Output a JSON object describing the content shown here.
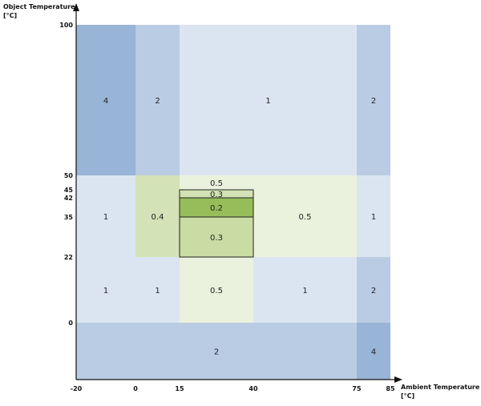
{
  "chart_data": {
    "type": "heatmap",
    "xlabel": "Ambient Temperature",
    "xunit": "[°C]",
    "ylabel": "Object Temperature",
    "yunit": "[°C]",
    "x_ticks": [
      "-20",
      "0",
      "15",
      "40",
      "75",
      "85"
    ],
    "y_ticks": [
      "0",
      "22",
      "35",
      "42",
      "45",
      "50",
      "100"
    ],
    "cells": [
      {
        "x": [
          -20,
          0
        ],
        "y": [
          50,
          100
        ],
        "value": "4",
        "color": "#98b4d6"
      },
      {
        "x": [
          0,
          15
        ],
        "y": [
          50,
          100
        ],
        "value": "2",
        "color": "#b9cce3"
      },
      {
        "x": [
          15,
          75
        ],
        "y": [
          50,
          100
        ],
        "value": "1",
        "color": "#dbe5f1"
      },
      {
        "x": [
          75,
          85
        ],
        "y": [
          50,
          100
        ],
        "value": "2",
        "color": "#b9cce3"
      },
      {
        "x": [
          -20,
          0
        ],
        "y": [
          22,
          50
        ],
        "value": "1",
        "color": "#dbe5f1"
      },
      {
        "x": [
          0,
          15
        ],
        "y": [
          22,
          50
        ],
        "value": "0.4",
        "color": "#d4e2b7"
      },
      {
        "x": [
          15,
          40
        ],
        "y": [
          45,
          50
        ],
        "value": "0.5",
        "color": "#eaf1dc"
      },
      {
        "x": [
          15,
          40
        ],
        "y": [
          42,
          45
        ],
        "value": "0.3",
        "color": "#d2e2b4"
      },
      {
        "x": [
          15,
          40
        ],
        "y": [
          35,
          42
        ],
        "value": "0.2",
        "color": "#97bd5a"
      },
      {
        "x": [
          15,
          40
        ],
        "y": [
          22,
          35
        ],
        "value": "0.3",
        "color": "#c8dca3"
      },
      {
        "x": [
          40,
          75
        ],
        "y": [
          22,
          50
        ],
        "value": "0.5",
        "color": "#eaf1dc"
      },
      {
        "x": [
          75,
          85
        ],
        "y": [
          22,
          50
        ],
        "value": "1",
        "color": "#dbe5f1"
      },
      {
        "x": [
          -20,
          0
        ],
        "y": [
          0,
          22
        ],
        "value": "1",
        "color": "#dbe5f1"
      },
      {
        "x": [
          0,
          15
        ],
        "y": [
          0,
          22
        ],
        "value": "1",
        "color": "#dbe5f1"
      },
      {
        "x": [
          15,
          40
        ],
        "y": [
          0,
          22
        ],
        "value": "0.5",
        "color": "#eaf1dc"
      },
      {
        "x": [
          40,
          75
        ],
        "y": [
          0,
          22
        ],
        "value": "1",
        "color": "#dbe5f1"
      },
      {
        "x": [
          75,
          85
        ],
        "y": [
          0,
          22
        ],
        "value": "2",
        "color": "#b9cce3"
      },
      {
        "x": [
          -20,
          75
        ],
        "y": [
          -10,
          0
        ],
        "value": "2",
        "color": "#b9cce3"
      },
      {
        "x": [
          75,
          85
        ],
        "y": [
          -10,
          0
        ],
        "value": "4",
        "color": "#98b4d6"
      }
    ],
    "outlined_region": {
      "x": [
        15,
        40
      ],
      "y": [
        22,
        45
      ]
    }
  }
}
